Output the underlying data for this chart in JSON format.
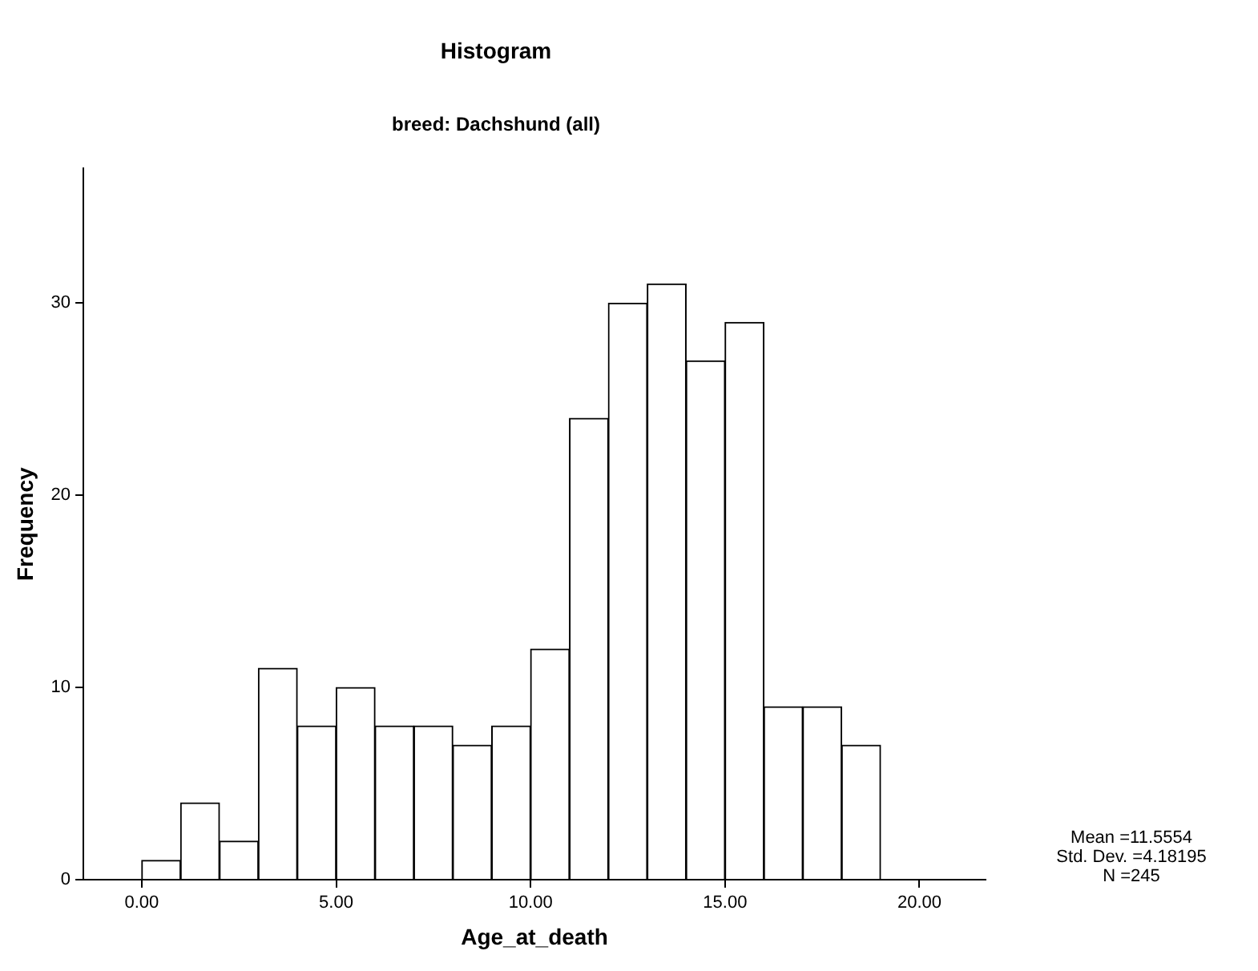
{
  "chart_data": {
    "type": "histogram",
    "title": "Histogram",
    "subtitle": "breed: Dachshund (all)",
    "xlabel": "Age_at_death",
    "ylabel": "Frequency",
    "bins": [
      0,
      1,
      2,
      3,
      4,
      5,
      6,
      7,
      8,
      9,
      10,
      11,
      12,
      13,
      14,
      15,
      16,
      17,
      18,
      19
    ],
    "values": [
      1,
      4,
      2,
      11,
      8,
      10,
      8,
      8,
      7,
      8,
      12,
      24,
      30,
      31,
      27,
      29,
      9,
      9,
      7
    ],
    "color": "#ffffff",
    "xlim": [
      -1.5,
      21.7
    ],
    "xticks": [
      {
        "value": 0,
        "label": "0.00"
      },
      {
        "value": 5,
        "label": "5.00"
      },
      {
        "value": 10,
        "label": "10.00"
      },
      {
        "value": 15,
        "label": "15.00"
      },
      {
        "value": 20,
        "label": "20.00"
      }
    ],
    "ylim": [
      0,
      37
    ],
    "yticks": [
      0,
      10,
      20,
      30
    ],
    "grid": false,
    "legend": false,
    "annotations": [
      "Mean =11.5554",
      "Std. Dev. =4.18195",
      "N =245"
    ]
  }
}
